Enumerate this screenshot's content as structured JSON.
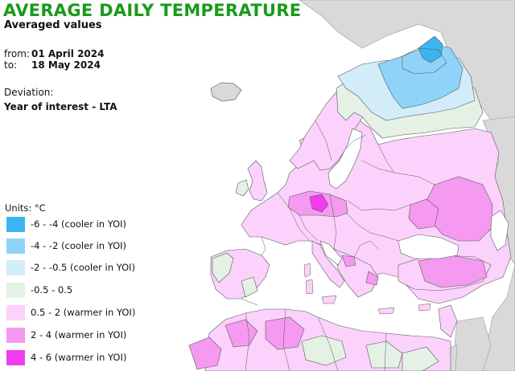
{
  "title": "AVERAGE DAILY TEMPERATURE",
  "subtitle": "Averaged values",
  "period": {
    "from_label": "from:",
    "from_value": "01 April 2024",
    "to_label": "to:",
    "to_value": "18 May 2024"
  },
  "deviation": {
    "label": "Deviation:",
    "value": "Year of interest - LTA"
  },
  "legend": {
    "units": "Units: °C",
    "items": [
      {
        "label": "-6 - -4 (cooler in YOI)",
        "color": "#3cb4f0"
      },
      {
        "label": "-4 - -2 (cooler in YOI)",
        "color": "#8fd3f8"
      },
      {
        "label": "-2 - -0.5 (cooler in YOI)",
        "color": "#d2ecfa"
      },
      {
        "label": "-0.5 - 0.5",
        "color": "#e4f1e4"
      },
      {
        "label": "0.5 - 2 (warmer in YOI)",
        "color": "#fbd2fb"
      },
      {
        "label": "2 - 4 (warmer in YOI)",
        "color": "#f59af0"
      },
      {
        "label": "4 - 6 (warmer in YOI)",
        "color": "#f23cf0"
      }
    ]
  },
  "map_colors": {
    "non_data": "#d9d9d9",
    "sea": "#ffffff",
    "border": "#5a5a5a"
  }
}
